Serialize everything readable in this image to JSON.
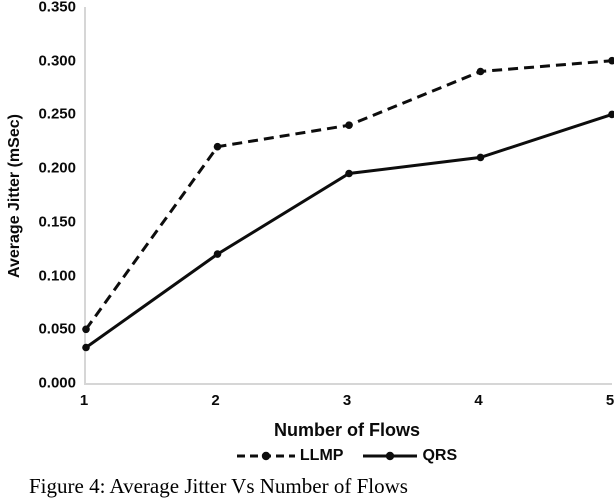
{
  "chart_data": {
    "type": "line",
    "title": "",
    "xlabel": "Number of Flows",
    "ylabel": "Average Jitter (mSec)",
    "x": [
      1,
      2,
      3,
      4,
      5
    ],
    "x_tick_labels": [
      "1",
      "2",
      "3",
      "4",
      "5"
    ],
    "y_tick_labels": [
      "0.000",
      "0.050",
      "0.100",
      "0.150",
      "0.200",
      "0.250",
      "0.300",
      "0.350"
    ],
    "xlim": [
      1,
      5
    ],
    "ylim": [
      0,
      0.35
    ],
    "grid": false,
    "legend_position": "bottom-center",
    "series": [
      {
        "name": "LLMP",
        "style": "dashed",
        "marker": "circle",
        "values": [
          0.05,
          0.22,
          0.24,
          0.29,
          0.3
        ]
      },
      {
        "name": "QRS",
        "style": "solid",
        "marker": "circle",
        "values": [
          0.033,
          0.12,
          0.195,
          0.21,
          0.25
        ]
      }
    ]
  },
  "caption": "Figure 4: Average Jitter Vs Number of Flows",
  "colors": {
    "line": "#0d0d0d",
    "marker": "#0d0d0d",
    "axis": "#d6d6d6",
    "text": "#0a0a0a",
    "background": "#ffffff"
  }
}
